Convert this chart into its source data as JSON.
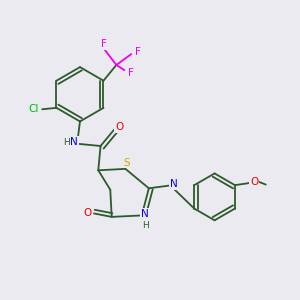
{
  "bg_color": "#eaeaf0",
  "bond_color": "#2d5a2d",
  "atom_colors": {
    "N": "#0000ee",
    "O": "#ee0000",
    "S": "#ccaa00",
    "Cl": "#00bb00",
    "F": "#ee00ee",
    "C": "#2d5a2d",
    "H": "#2d5a2d"
  }
}
